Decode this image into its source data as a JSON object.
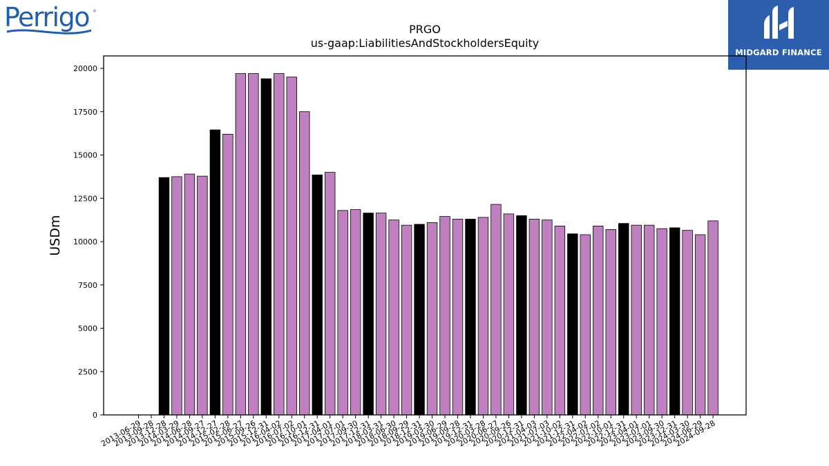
{
  "header": {
    "company_logo_text": "Perrigo",
    "brand_name": "MIDGARD FINANCE"
  },
  "colors": {
    "bar_highlight": "#000000",
    "bar_normal": "#bf80bf",
    "bar_edge": "#000000",
    "brand_background": "#2d5ead",
    "company_logo": "#1f5fb0"
  },
  "chart_data": {
    "type": "bar",
    "title": "PRGO",
    "subtitle": "us-gaap:LiabilitiesAndStockholdersEquity",
    "xlabel": "",
    "ylabel": "USDm",
    "ylim": [
      0,
      20000
    ],
    "yticks": [
      0,
      2500,
      5000,
      7500,
      10000,
      12500,
      15000,
      17500,
      20000
    ],
    "grid": false,
    "legend": "none",
    "highlight_rule": "fiscal year-end periods drawn in black",
    "categories": [
      "2013-06-29",
      "2013-09-28",
      "2013-12-28",
      "2014-03-29",
      "2014-06-28",
      "2014-09-27",
      "2014-12-27",
      "2015-02-28",
      "2015-06-27",
      "2015-09-26",
      "2015-12-31",
      "2016-04-02",
      "2016-07-02",
      "2016-10-01",
      "2016-12-31",
      "2017-04-01",
      "2017-07-01",
      "2017-09-30",
      "2017-12-31",
      "2018-03-31",
      "2018-06-30",
      "2018-09-29",
      "2018-12-31",
      "2019-03-30",
      "2019-06-29",
      "2019-09-28",
      "2019-12-31",
      "2020-03-28",
      "2020-06-27",
      "2020-09-26",
      "2020-12-31",
      "2021-04-03",
      "2021-07-03",
      "2021-10-02",
      "2021-12-31",
      "2022-04-02",
      "2022-07-02",
      "2022-10-01",
      "2022-12-31",
      "2023-04-01",
      "2023-07-01",
      "2023-09-30",
      "2023-12-31",
      "2024-03-30",
      "2024-06-29",
      "2024-09-28"
    ],
    "values": [
      null,
      null,
      13700,
      13750,
      13900,
      13780,
      16450,
      16200,
      19700,
      19700,
      19400,
      19700,
      19500,
      17500,
      13850,
      14000,
      11800,
      11850,
      11650,
      11650,
      11250,
      10950,
      11000,
      11100,
      11450,
      11300,
      11300,
      11400,
      12150,
      11600,
      11500,
      11300,
      11250,
      10900,
      10450,
      10400,
      10900,
      10700,
      11050,
      10950,
      10950,
      10750,
      10800,
      10650,
      10400,
      11200
    ],
    "highlight": [
      false,
      false,
      true,
      false,
      false,
      false,
      true,
      false,
      false,
      false,
      true,
      false,
      false,
      false,
      true,
      false,
      false,
      false,
      true,
      false,
      false,
      false,
      true,
      false,
      false,
      false,
      true,
      false,
      false,
      false,
      true,
      false,
      false,
      false,
      true,
      false,
      false,
      false,
      true,
      false,
      false,
      false,
      true,
      false,
      false,
      false
    ]
  }
}
